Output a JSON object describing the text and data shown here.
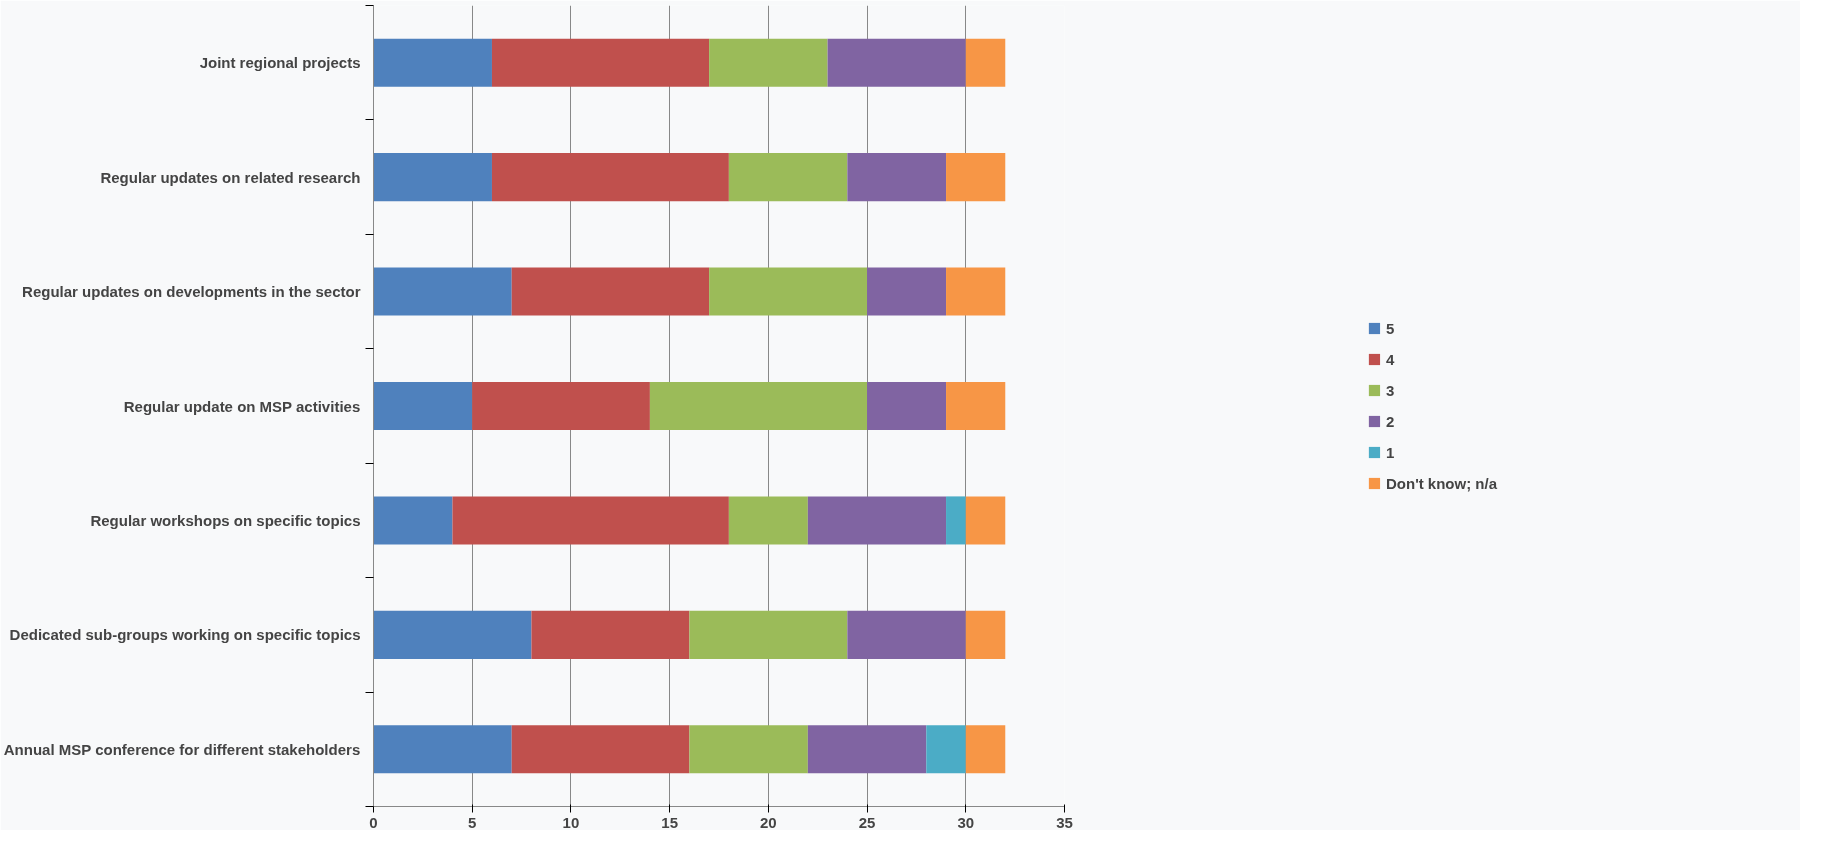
{
  "chart_data": {
    "type": "bar",
    "orientation": "horizontal",
    "stacked": true,
    "categories": [
      "Joint regional projects",
      "Regular updates on related research",
      "Regular updates on developments in the sector",
      "Regular update on MSP activities",
      "Regular workshops on specific topics",
      "Dedicated sub-groups working on specific topics",
      "Annual MSP conference for different stakeholders"
    ],
    "series": [
      {
        "name": "5",
        "color": "#4f81bd",
        "values": [
          6,
          6,
          7,
          5,
          4,
          8,
          7
        ]
      },
      {
        "name": "4",
        "color": "#c0504d",
        "values": [
          11,
          12,
          10,
          9,
          14,
          8,
          9
        ]
      },
      {
        "name": "3",
        "color": "#9bbb59",
        "values": [
          6,
          6,
          8,
          11,
          4,
          8,
          6
        ]
      },
      {
        "name": "2",
        "color": "#8064a2",
        "values": [
          7,
          5,
          4,
          4,
          7,
          6,
          6
        ]
      },
      {
        "name": "1",
        "color": "#4bacc6",
        "values": [
          0,
          0,
          0,
          0,
          1,
          0,
          2
        ]
      },
      {
        "name": "Don't know; n/a",
        "color": "#f79646",
        "values": [
          2,
          3,
          3,
          3,
          2,
          2,
          2
        ]
      }
    ],
    "xlim": [
      0,
      35
    ],
    "xticks": [
      0,
      5,
      10,
      15,
      20,
      25,
      30,
      35
    ],
    "grid": "x",
    "legend": "right"
  }
}
